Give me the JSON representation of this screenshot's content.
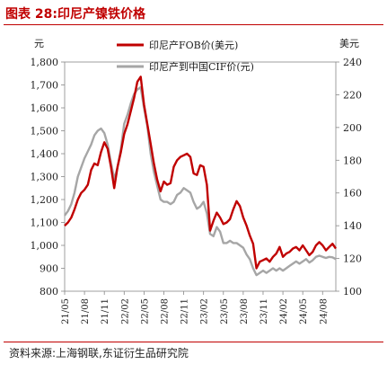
{
  "figure": {
    "title": "图表 28:印尼产镍铁价格",
    "source": "资料来源:上海钢联,东证衍生品研究院"
  },
  "colors": {
    "accent": "#c00000",
    "series_fob": "#c00000",
    "series_cif": "#a6a6a6"
  },
  "chart_data": {
    "type": "line",
    "y_left_label": "元",
    "y_right_label": "美元",
    "y_left_ticks": [
      "800",
      "900",
      "1,000",
      "1,100",
      "1,200",
      "1,300",
      "1,400",
      "1,500",
      "1,600",
      "1,700",
      "1,800"
    ],
    "y_right_ticks": [
      "100",
      "120",
      "140",
      "160",
      "180",
      "200",
      "220",
      "240"
    ],
    "x_tick_labels": [
      "21/05",
      "21/08",
      "21/11",
      "22/02",
      "22/05",
      "22/08",
      "22/11",
      "23/02",
      "23/05",
      "23/08",
      "23/11",
      "24/02",
      "24/05",
      "24/08"
    ],
    "ylim_left": [
      800,
      1800
    ],
    "ylim_right": [
      100,
      240
    ],
    "x_range_months": [
      0,
      41
    ],
    "legend_position": "top",
    "series": [
      {
        "name": "印尼产FOB价(美元)",
        "axis": "right",
        "x": [
          0,
          0.5,
          1,
          1.5,
          2,
          2.5,
          3,
          3.5,
          4,
          4.5,
          5,
          5.5,
          6,
          6.5,
          7,
          7.5,
          8,
          8.5,
          9,
          9.5,
          10,
          10.5,
          11,
          11.5,
          12,
          12.5,
          13,
          13.5,
          14,
          14.5,
          15,
          15.5,
          16,
          16.5,
          17,
          17.5,
          18,
          18.5,
          19,
          19.5,
          20,
          20.5,
          21,
          21.5,
          22,
          22.5,
          23,
          23.5,
          24,
          24.5,
          25,
          25.5,
          26,
          26.5,
          27,
          27.5,
          28,
          28.5,
          29,
          29.5,
          30,
          30.5,
          31,
          31.5,
          32,
          32.5,
          33,
          33.5,
          34,
          34.5,
          35,
          35.5,
          36,
          36.5,
          37,
          37.5,
          38,
          38.5,
          39,
          39.5,
          40,
          40.5,
          41
        ],
        "values": [
          140,
          142,
          145,
          150,
          156,
          160,
          162,
          165,
          174,
          178,
          177,
          185,
          191,
          187,
          176,
          163,
          176,
          185,
          196,
          202,
          210,
          218,
          228,
          231,
          214,
          202,
          190,
          178,
          168,
          161,
          167,
          165,
          166,
          176,
          180,
          182,
          183,
          184,
          182,
          172,
          171,
          177,
          176,
          165,
          137,
          143,
          148,
          145,
          141,
          142,
          144,
          150,
          155,
          152,
          145,
          140,
          134,
          129,
          114,
          118,
          119,
          120,
          118,
          121,
          123,
          127,
          121,
          123,
          124,
          126,
          127,
          125,
          128,
          125,
          122,
          124,
          128,
          130,
          128,
          125,
          127,
          129,
          126
        ]
      },
      {
        "name": "印尼产到中国CIF价(元)",
        "axis": "left",
        "x": [
          0,
          0.5,
          1,
          1.5,
          2,
          2.5,
          3,
          3.5,
          4,
          4.5,
          5,
          5.5,
          6,
          6.5,
          7,
          7.5,
          8,
          8.5,
          9,
          9.5,
          10,
          10.5,
          11,
          11.5,
          12,
          12.5,
          13,
          13.5,
          14,
          14.5,
          15,
          15.5,
          16,
          16.5,
          17,
          17.5,
          18,
          18.5,
          19,
          19.5,
          20,
          20.5,
          21,
          21.5,
          22,
          22.5,
          23,
          23.5,
          24,
          24.5,
          25,
          25.5,
          26,
          26.5,
          27,
          27.5,
          28,
          28.5,
          29,
          29.5,
          30,
          30.5,
          31,
          31.5,
          32,
          32.5,
          33,
          33.5,
          34,
          34.5,
          35,
          35.5,
          36,
          36.5,
          37,
          37.5,
          38,
          38.5,
          39,
          39.5,
          40,
          40.5,
          41
        ],
        "values": [
          1130,
          1150,
          1180,
          1230,
          1300,
          1340,
          1380,
          1410,
          1440,
          1480,
          1500,
          1510,
          1490,
          1440,
          1360,
          1290,
          1340,
          1420,
          1530,
          1570,
          1620,
          1660,
          1680,
          1690,
          1600,
          1520,
          1400,
          1320,
          1260,
          1200,
          1190,
          1190,
          1180,
          1190,
          1220,
          1230,
          1250,
          1240,
          1230,
          1190,
          1160,
          1170,
          1190,
          1140,
          1050,
          1040,
          1080,
          1060,
          1010,
          1010,
          1020,
          1010,
          1010,
          1000,
          990,
          960,
          940,
          900,
          870,
          880,
          890,
          880,
          890,
          900,
          890,
          900,
          890,
          900,
          910,
          920,
          930,
          920,
          930,
          940,
          925,
          935,
          950,
          955,
          950,
          945,
          950,
          948,
          940
        ]
      }
    ]
  }
}
